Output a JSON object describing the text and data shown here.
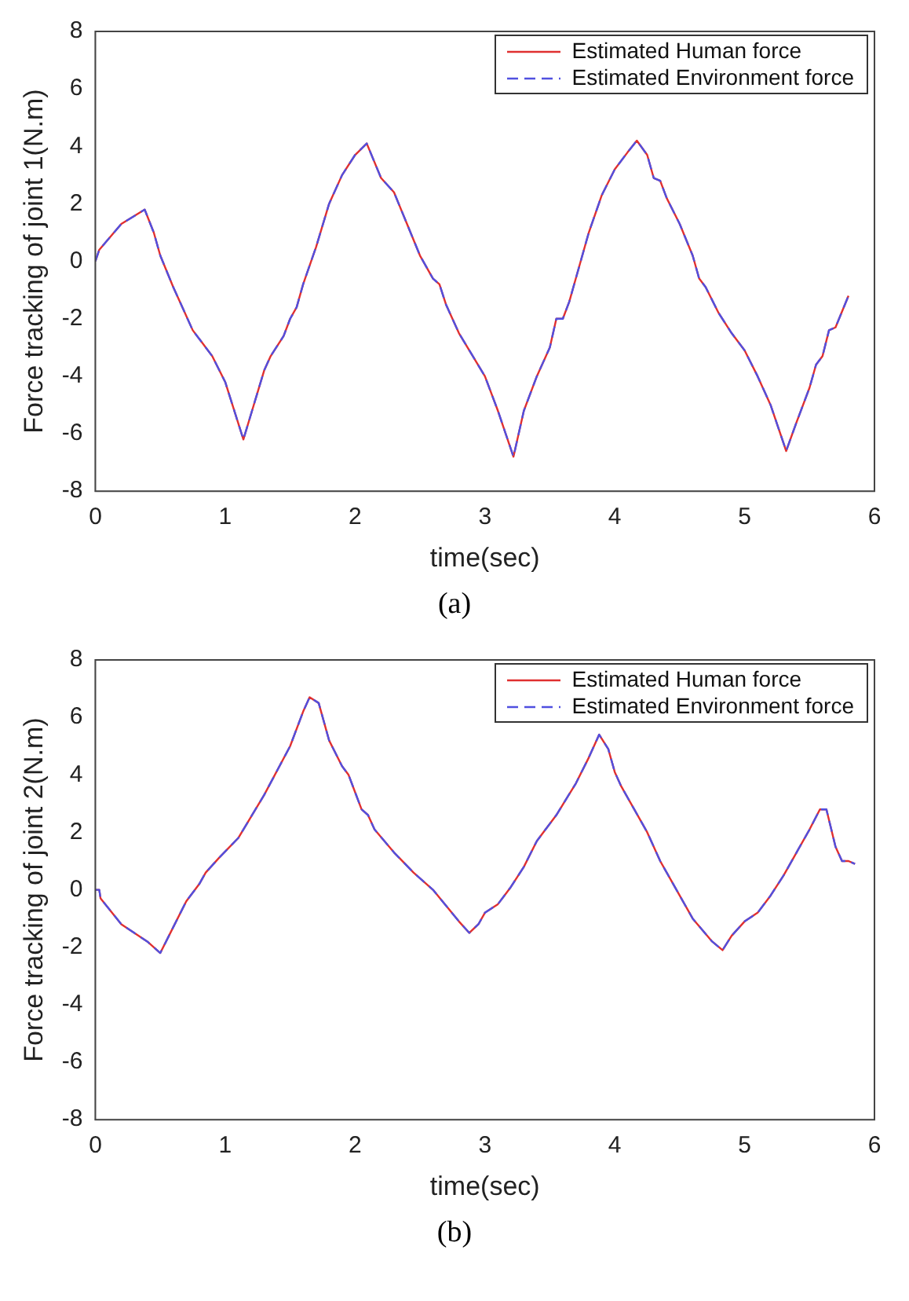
{
  "chart_data": [
    {
      "type": "line",
      "xlabel": "time(sec)",
      "ylabel": "Force tracking of joint 1(N.m)",
      "annotations": [
        "(a)"
      ],
      "xlim": [
        0,
        6
      ],
      "xticks": [
        0,
        1,
        2,
        3,
        4,
        5,
        6
      ],
      "ylim": [
        -8,
        8
      ],
      "yticks": [
        -8,
        -6,
        -4,
        -2,
        0,
        2,
        4,
        6,
        8
      ],
      "grid": false,
      "legend": "top right",
      "x": [
        0,
        0.03,
        0.2,
        0.38,
        0.45,
        0.5,
        0.6,
        0.65,
        0.75,
        0.9,
        1.0,
        1.14,
        1.22,
        1.3,
        1.35,
        1.45,
        1.5,
        1.55,
        1.6,
        1.7,
        1.8,
        1.9,
        2.0,
        2.09,
        2.2,
        2.3,
        2.4,
        2.5,
        2.6,
        2.65,
        2.7,
        2.8,
        3.0,
        3.1,
        3.22,
        3.3,
        3.4,
        3.5,
        3.55,
        3.6,
        3.65,
        3.7,
        3.8,
        3.9,
        4.0,
        4.1,
        4.17,
        4.25,
        4.3,
        4.35,
        4.4,
        4.5,
        4.6,
        4.65,
        4.7,
        4.8,
        4.9,
        5.0,
        5.1,
        5.2,
        5.32,
        5.4,
        5.5,
        5.55,
        5.6,
        5.65,
        5.7,
        5.8
      ],
      "series": [
        {
          "name": "Estimated Human force",
          "color": "#e03030",
          "line_style": "solid",
          "values": [
            0,
            0.4,
            1.3,
            1.8,
            1.0,
            0.2,
            -0.9,
            -1.4,
            -2.4,
            -3.3,
            -4.2,
            -6.2,
            -5.0,
            -3.8,
            -3.3,
            -2.6,
            -2.0,
            -1.6,
            -0.8,
            0.5,
            2.0,
            3.0,
            3.7,
            4.1,
            2.9,
            2.4,
            1.3,
            0.2,
            -0.6,
            -0.8,
            -1.5,
            -2.5,
            -4.0,
            -5.2,
            -6.8,
            -5.2,
            -4.0,
            -3.0,
            -2.0,
            -2.0,
            -1.4,
            -0.6,
            1.0,
            2.3,
            3.2,
            3.8,
            4.2,
            3.7,
            2.9,
            2.8,
            2.2,
            1.3,
            0.2,
            -0.6,
            -0.9,
            -1.8,
            -2.5,
            -3.1,
            -4.0,
            -5.0,
            -6.6,
            -5.6,
            -4.4,
            -3.6,
            -3.3,
            -2.4,
            -2.3,
            -1.2
          ]
        },
        {
          "name": "Estimated Environment force",
          "color": "#5050e0",
          "line_style": "dashed",
          "values": [
            0,
            0.4,
            1.3,
            1.8,
            1.0,
            0.2,
            -0.9,
            -1.4,
            -2.4,
            -3.3,
            -4.2,
            -6.2,
            -5.0,
            -3.8,
            -3.3,
            -2.6,
            -2.0,
            -1.6,
            -0.8,
            0.5,
            2.0,
            3.0,
            3.7,
            4.1,
            2.9,
            2.4,
            1.3,
            0.2,
            -0.6,
            -0.8,
            -1.5,
            -2.5,
            -4.0,
            -5.2,
            -6.8,
            -5.2,
            -4.0,
            -3.0,
            -2.0,
            -2.0,
            -1.4,
            -0.6,
            1.0,
            2.3,
            3.2,
            3.8,
            4.2,
            3.7,
            2.9,
            2.8,
            2.2,
            1.3,
            0.2,
            -0.6,
            -0.9,
            -1.8,
            -2.5,
            -3.1,
            -4.0,
            -5.0,
            -6.6,
            -5.6,
            -4.4,
            -3.6,
            -3.3,
            -2.4,
            -2.3,
            -1.2
          ]
        }
      ]
    },
    {
      "type": "line",
      "xlabel": "time(sec)",
      "ylabel": "Force tracking of joint 2(N.m)",
      "annotations": [
        "(b)"
      ],
      "xlim": [
        0,
        6
      ],
      "xticks": [
        0,
        1,
        2,
        3,
        4,
        5,
        6
      ],
      "ylim": [
        -8,
        8
      ],
      "yticks": [
        -8,
        -6,
        -4,
        -2,
        0,
        2,
        4,
        6,
        8
      ],
      "grid": false,
      "legend": "top right",
      "x": [
        0,
        0.03,
        0.04,
        0.2,
        0.4,
        0.5,
        0.6,
        0.7,
        0.8,
        0.85,
        0.95,
        1.1,
        1.3,
        1.5,
        1.6,
        1.65,
        1.72,
        1.8,
        1.9,
        1.95,
        2.0,
        2.05,
        2.1,
        2.15,
        2.3,
        2.45,
        2.6,
        2.8,
        2.88,
        2.95,
        3.0,
        3.1,
        3.15,
        3.2,
        3.3,
        3.4,
        3.45,
        3.55,
        3.7,
        3.8,
        3.88,
        3.95,
        4.0,
        4.05,
        4.15,
        4.25,
        4.35,
        4.4,
        4.5,
        4.6,
        4.75,
        4.83,
        4.9,
        5.0,
        5.1,
        5.2,
        5.3,
        5.4,
        5.5,
        5.58,
        5.63,
        5.7,
        5.75,
        5.8,
        5.85
      ],
      "series": [
        {
          "name": "Estimated Human force",
          "color": "#e03030",
          "line_style": "solid",
          "values": [
            0,
            0,
            -0.3,
            -1.2,
            -1.8,
            -2.2,
            -1.3,
            -0.4,
            0.2,
            0.6,
            1.1,
            1.8,
            3.3,
            5.0,
            6.2,
            6.7,
            6.5,
            5.2,
            4.3,
            4.0,
            3.4,
            2.8,
            2.6,
            2.1,
            1.3,
            0.6,
            0,
            -1.1,
            -1.5,
            -1.2,
            -0.8,
            -0.5,
            -0.2,
            0.1,
            0.8,
            1.7,
            2.0,
            2.6,
            3.7,
            4.6,
            5.4,
            4.9,
            4.1,
            3.6,
            2.8,
            2.0,
            1.0,
            0.6,
            -0.2,
            -1.0,
            -1.8,
            -2.1,
            -1.6,
            -1.1,
            -0.8,
            -0.2,
            0.5,
            1.3,
            2.1,
            2.8,
            2.8,
            1.5,
            1.0,
            1.0,
            0.9
          ]
        },
        {
          "name": "Estimated Environment force",
          "color": "#5050e0",
          "line_style": "dashed",
          "values": [
            0,
            0,
            -0.3,
            -1.2,
            -1.8,
            -2.2,
            -1.3,
            -0.4,
            0.2,
            0.6,
            1.1,
            1.8,
            3.3,
            5.0,
            6.2,
            6.7,
            6.5,
            5.2,
            4.3,
            4.0,
            3.4,
            2.8,
            2.6,
            2.1,
            1.3,
            0.6,
            0,
            -1.1,
            -1.5,
            -1.2,
            -0.8,
            -0.5,
            -0.2,
            0.1,
            0.8,
            1.7,
            2.0,
            2.6,
            3.7,
            4.6,
            5.4,
            4.9,
            4.1,
            3.6,
            2.8,
            2.0,
            1.0,
            0.6,
            -0.2,
            -1.0,
            -1.8,
            -2.1,
            -1.6,
            -1.1,
            -0.8,
            -0.2,
            0.5,
            1.3,
            2.1,
            2.8,
            2.8,
            1.5,
            1.0,
            1.0,
            0.9
          ]
        }
      ]
    }
  ]
}
